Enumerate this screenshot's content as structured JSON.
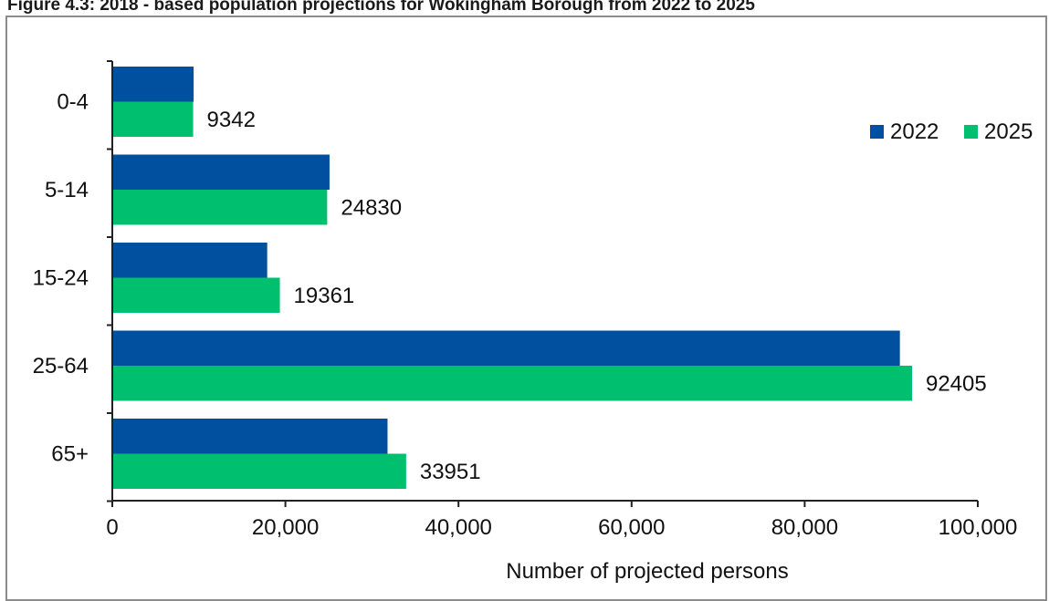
{
  "chart_data": {
    "type": "bar",
    "orientation": "horizontal",
    "title": "Figure 4.3: 2018 - based population projections for Wokingham Borough from 2022 to 2025",
    "xlabel": "Number of projected persons",
    "ylabel": "",
    "categories": [
      "0-4",
      "5-14",
      "15-24",
      "25-64",
      "65+"
    ],
    "series": [
      {
        "name": "2022",
        "color": "#0050a0",
        "values": [
          9400,
          25100,
          17900,
          91000,
          31800
        ]
      },
      {
        "name": "2025",
        "color": "#00c070",
        "values": [
          9342,
          24830,
          19361,
          92405,
          33951
        ]
      }
    ],
    "data_labels": [
      "9342",
      "24830",
      "19361",
      "92405",
      "33951"
    ],
    "xlim": [
      0,
      100000
    ],
    "xticks": [
      0,
      20000,
      40000,
      60000,
      80000,
      100000
    ],
    "xtick_labels": [
      "0",
      "20,000",
      "40,000",
      "60,000",
      "80,000",
      "100,000"
    ],
    "grid": false,
    "legend_position": "top-right"
  }
}
